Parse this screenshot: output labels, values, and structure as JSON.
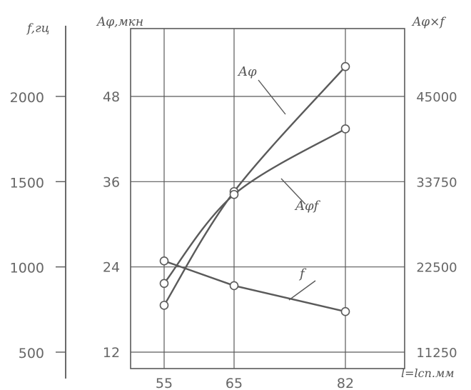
{
  "chart_data": {
    "type": "line",
    "x": [
      55,
      65,
      82
    ],
    "x_tick_labels": [
      "55",
      "65",
      "82"
    ],
    "xlabel": "l=lсп.мм",
    "xlim": [
      55,
      82
    ],
    "grid": true,
    "axes": {
      "left_outer": {
        "label": "f,гц",
        "ticks": [
          500,
          1000,
          1500,
          2000
        ],
        "tick_labels": [
          "500",
          "1000",
          "1500",
          "2000"
        ]
      },
      "left_inner": {
        "label": "Aφ,мкн",
        "ticks": [
          12,
          24,
          36,
          48
        ],
        "tick_labels": [
          "12",
          "24",
          "36",
          "48"
        ],
        "ylim": [
          10,
          60
        ]
      },
      "right": {
        "label": "Aφ×f",
        "ticks": [
          11250,
          22500,
          33750,
          45000
        ],
        "tick_labels": [
          "11250",
          "22500",
          "33750",
          "45000"
        ]
      }
    },
    "series": [
      {
        "name": "Aφ",
        "axis": "left_inner",
        "x": [
          55,
          65,
          82
        ],
        "values": [
          18.6,
          34.6,
          52.2
        ]
      },
      {
        "name": "Aφf",
        "axis": "right",
        "x": [
          55,
          65,
          82
        ],
        "values": [
          20320,
          32060,
          40720
        ]
      },
      {
        "name": "f",
        "axis": "left_outer",
        "x": [
          55,
          65,
          82
        ],
        "values": [
          1035,
          890,
          738
        ]
      }
    ]
  }
}
